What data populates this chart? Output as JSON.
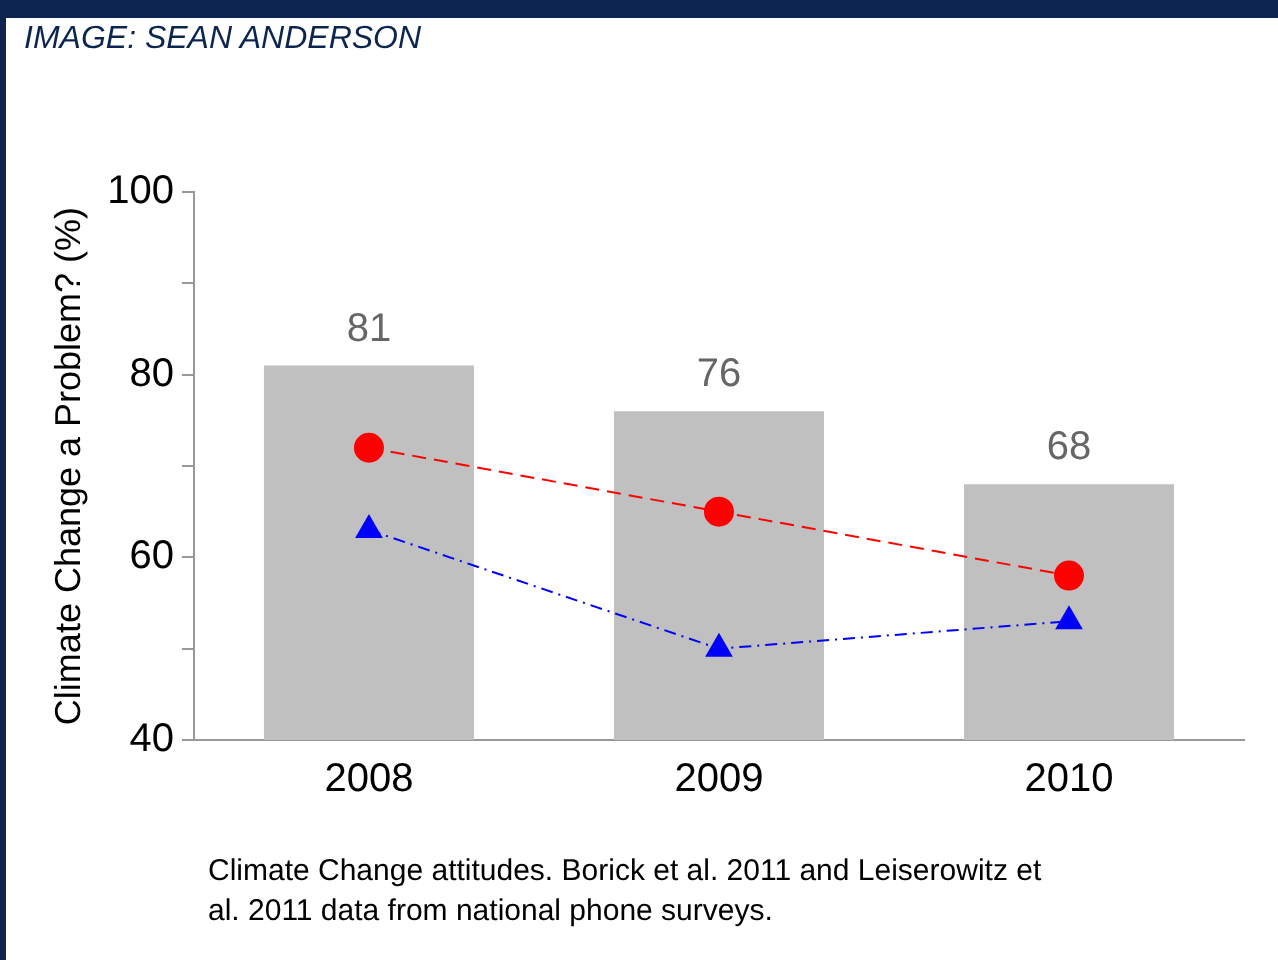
{
  "chart_data": {
    "type": "bar",
    "ylabel": "Climate Change a Problem? (%)",
    "categories": [
      "2008",
      "2009",
      "2010"
    ],
    "series": [
      {
        "color": "#c0c0c0",
        "values": [
          81,
          76,
          68
        ],
        "value_labels": [
          "81",
          "76",
          "68"
        ]
      },
      {
        "type": "line",
        "color": "#ff0000",
        "values": [
          72,
          65,
          58
        ],
        "marker": "circle",
        "line_style": "dashed"
      },
      {
        "type": "line",
        "color": "#0000ff",
        "values": [
          63,
          50,
          53
        ],
        "marker": "triangle",
        "line_style": "dotted"
      }
    ],
    "ylim": [
      40,
      100
    ],
    "yticks": [
      40,
      {
        "value": 50,
        "label": null
      },
      60,
      {
        "value": 70,
        "label": null
      },
      80,
      {
        "value": 90,
        "label": null
      },
      100
    ],
    "grid": false,
    "legend": false,
    "annotations": [
      "IMAGE: SEAN ANDERSON",
      "Climate Change attitudes.  Borick et al. 2011 and Leiserowitz et al. 2011 data from national phone surveys."
    ]
  }
}
